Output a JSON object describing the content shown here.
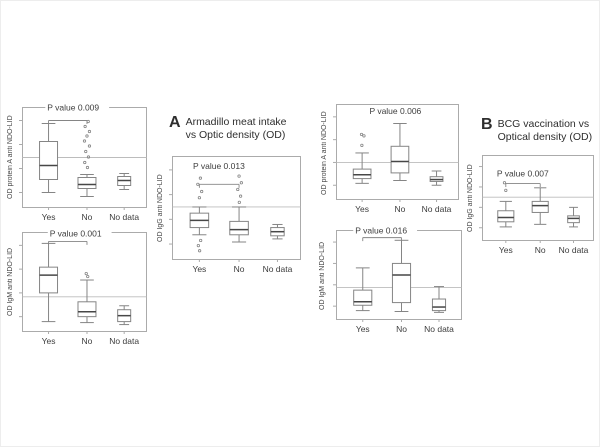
{
  "sections": {
    "a": {
      "letter": "A",
      "line1": "Armadillo meat intake",
      "line2": "vs Optic density (OD)"
    },
    "b": {
      "letter": "B",
      "line1": "BCG vaccination vs",
      "line2": "Optical density (OD)"
    }
  },
  "colors": {
    "line": "#858585",
    "median": "#474747",
    "border": "#ababab",
    "cutoff": "#bcbcbc",
    "text": "#3d3d3d"
  },
  "chart_data": [
    {
      "type": "boxplot",
      "panel": "A-top-left",
      "p_value": 0.009,
      "p_value_label": "P value 0.009",
      "ylabel": "OD protein A anti NDO-LID",
      "categories": [
        "Yes",
        "No",
        "No data"
      ],
      "scale_note": "normalized 0-1 (tick numbers illegible in source)",
      "cutoff": 0.5,
      "n_yticks": 4,
      "boxes": [
        {
          "category": "Yes",
          "whisker_low": 0.15,
          "q1": 0.28,
          "median": 0.42,
          "q3": 0.66,
          "whisker_high": 0.84,
          "points": []
        },
        {
          "category": "No",
          "whisker_low": 0.11,
          "q1": 0.19,
          "median": 0.23,
          "q3": 0.3,
          "whisker_high": 0.33,
          "points": [
            [
              0.01,
              0.86
            ],
            [
              -0.015,
              0.81
            ],
            [
              0.02,
              0.76
            ],
            [
              0.0,
              0.715
            ],
            [
              -0.02,
              0.665
            ],
            [
              0.02,
              0.615
            ],
            [
              -0.01,
              0.56
            ],
            [
              0.012,
              0.505
            ],
            [
              -0.018,
              0.45
            ],
            [
              0.004,
              0.4
            ]
          ]
        },
        {
          "category": "No data",
          "whisker_low": 0.18,
          "q1": 0.22,
          "median": 0.27,
          "q3": 0.31,
          "whisker_high": 0.34,
          "points": []
        }
      ],
      "bracket": {
        "from": 0,
        "to": 1,
        "y": 0.87
      },
      "p_label_x": 0.2,
      "p_label_y": 1.0
    },
    {
      "type": "boxplot",
      "panel": "A-bottom-left",
      "p_value": 0.001,
      "p_value_label": "P value 0.001",
      "ylabel": "OD IgM anti NDO-LID",
      "categories": [
        "Yes",
        "No",
        "No data"
      ],
      "scale_note": "normalized 0-1 (tick numbers illegible in source)",
      "cutoff": 0.35,
      "n_yticks": 4,
      "boxes": [
        {
          "category": "Yes",
          "whisker_low": 0.1,
          "q1": 0.39,
          "median": 0.57,
          "q3": 0.65,
          "whisker_high": 0.89,
          "points": []
        },
        {
          "category": "No",
          "whisker_low": 0.09,
          "q1": 0.15,
          "median": 0.2,
          "q3": 0.3,
          "whisker_high": 0.52,
          "points": [
            [
              0.006,
              0.555
            ],
            [
              -0.006,
              0.585
            ]
          ]
        },
        {
          "category": "No data",
          "whisker_low": 0.07,
          "q1": 0.1,
          "median": 0.16,
          "q3": 0.22,
          "whisker_high": 0.26,
          "points": []
        }
      ],
      "bracket": {
        "from": 0,
        "to": 1,
        "y": 0.91
      },
      "p_label_x": 0.22,
      "p_label_y": 0.99
    },
    {
      "type": "boxplot",
      "panel": "A-middle",
      "p_value": 0.013,
      "p_value_label": "P value 0.013",
      "ylabel": "OD IgG anti NDO-LID",
      "categories": [
        "Yes",
        "No",
        "No data"
      ],
      "scale_note": "normalized 0-1 (tick numbers illegible in source)",
      "cutoff": 0.51,
      "n_yticks": 4,
      "boxes": [
        {
          "category": "Yes",
          "whisker_low": 0.24,
          "q1": 0.31,
          "median": 0.38,
          "q3": 0.45,
          "whisker_high": 0.51,
          "points": [
            [
              0.008,
              0.79
            ],
            [
              -0.012,
              0.73
            ],
            [
              0.018,
              0.66
            ],
            [
              0.0,
              0.6
            ],
            [
              0.01,
              0.185
            ],
            [
              -0.008,
              0.135
            ],
            [
              0.002,
              0.085
            ]
          ]
        },
        {
          "category": "No",
          "whisker_low": 0.17,
          "q1": 0.24,
          "median": 0.29,
          "q3": 0.37,
          "whisker_high": 0.51,
          "points": [
            [
              0.0,
              0.81
            ],
            [
              0.018,
              0.745
            ],
            [
              -0.01,
              0.68
            ],
            [
              0.012,
              0.615
            ],
            [
              0.002,
              0.555
            ]
          ]
        },
        {
          "category": "No data",
          "whisker_low": 0.2,
          "q1": 0.23,
          "median": 0.27,
          "q3": 0.31,
          "whisker_high": 0.34,
          "points": []
        }
      ],
      "bracket": {
        "from": 0,
        "to": 1,
        "y": 0.73
      },
      "p_label_x": 0.16,
      "p_label_y": 0.91
    },
    {
      "type": "boxplot",
      "panel": "B-top-middle",
      "p_value": 0.006,
      "p_value_label": "P value 0.006",
      "ylabel": "OD protein A anti NDO-LID",
      "categories": [
        "Yes",
        "No",
        "No data"
      ],
      "scale_note": "normalized 0-1 (tick numbers illegible in source)",
      "cutoff": 0.39,
      "n_yticks": 4,
      "boxes": [
        {
          "category": "Yes",
          "whisker_low": 0.17,
          "q1": 0.22,
          "median": 0.26,
          "q3": 0.32,
          "whisker_high": 0.49,
          "points": [
            [
              -0.005,
              0.685
            ],
            [
              0.015,
              0.67
            ],
            [
              -0.002,
              0.57
            ]
          ]
        },
        {
          "category": "No",
          "whisker_low": 0.2,
          "q1": 0.28,
          "median": 0.4,
          "q3": 0.56,
          "whisker_high": 0.8,
          "points": []
        },
        {
          "category": "No data",
          "whisker_low": 0.15,
          "q1": 0.19,
          "median": 0.21,
          "q3": 0.24,
          "whisker_high": 0.3,
          "points": []
        }
      ],
      "bracket": null,
      "p_label_x": 0.27,
      "p_label_y": 0.93
    },
    {
      "type": "boxplot",
      "panel": "B-bottom-middle",
      "p_value": 0.016,
      "p_value_label": "P value 0.016",
      "ylabel": "OD IgM anti NDO-LID",
      "categories": [
        "Yes",
        "No",
        "No data"
      ],
      "scale_note": "normalized 0-1 (tick numbers illegible in source)",
      "cutoff": 0.36,
      "n_yticks": 4,
      "boxes": [
        {
          "category": "Yes",
          "whisker_low": 0.1,
          "q1": 0.16,
          "median": 0.2,
          "q3": 0.33,
          "whisker_high": 0.58,
          "points": []
        },
        {
          "category": "No",
          "whisker_low": 0.09,
          "q1": 0.19,
          "median": 0.5,
          "q3": 0.63,
          "whisker_high": 0.89,
          "points": []
        },
        {
          "category": "No data",
          "whisker_low": 0.08,
          "q1": 0.1,
          "median": 0.14,
          "q3": 0.23,
          "whisker_high": 0.37,
          "points": []
        }
      ],
      "bracket": {
        "from": 0,
        "to": 1,
        "y": 0.92
      },
      "p_label_x": 0.15,
      "p_label_y": 1.0
    },
    {
      "type": "boxplot",
      "panel": "B-right",
      "p_value": 0.007,
      "p_value_label": "P value 0.007",
      "ylabel": "OD IgG anti NDO-LID",
      "categories": [
        "Yes",
        "No",
        "No data"
      ],
      "scale_note": "normalized 0-1 (tick numbers illegible in source)",
      "cutoff": 0.51,
      "n_yticks": 4,
      "boxes": [
        {
          "category": "Yes",
          "whisker_low": 0.16,
          "q1": 0.22,
          "median": 0.27,
          "q3": 0.35,
          "whisker_high": 0.46,
          "points": [
            [
              -0.012,
              0.68
            ],
            [
              0.0,
              0.59
            ]
          ]
        },
        {
          "category": "No",
          "whisker_low": 0.19,
          "q1": 0.33,
          "median": 0.41,
          "q3": 0.46,
          "whisker_high": 0.62,
          "points": []
        },
        {
          "category": "No data",
          "whisker_low": 0.16,
          "q1": 0.21,
          "median": 0.26,
          "q3": 0.29,
          "whisker_high": 0.39,
          "points": []
        }
      ],
      "bracket": {
        "from": 0,
        "to": 1,
        "y": 0.67
      },
      "p_label_x": 0.13,
      "p_label_y": 0.79
    }
  ]
}
